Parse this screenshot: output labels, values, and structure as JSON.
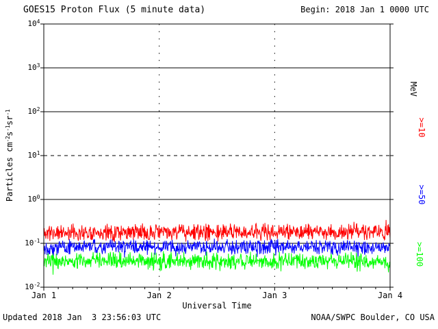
{
  "header": {
    "title": "GOES15 Proton Flux (5 minute data)",
    "begin": "Begin: 2018 Jan 1 0000 UTC"
  },
  "footer": {
    "updated": "Updated 2018 Jan  3 23:56:03 UTC",
    "source": "NOAA/SWPC Boulder, CO USA"
  },
  "chart_data": {
    "type": "line",
    "title": "GOES15 Proton Flux (5 minute data)",
    "begin_label": "Begin: 2018 Jan 1 0000 UTC",
    "xlabel": "Universal Time",
    "ylabel": "Particles cm-2 s-1 sr-1",
    "ylabel_segments": [
      {
        "t": "Particles cm"
      },
      {
        "t": "-2",
        "sup": true
      },
      {
        "t": "s"
      },
      {
        "t": "-1",
        "sup": true
      },
      {
        "t": "sr"
      },
      {
        "t": "-1",
        "sup": true
      }
    ],
    "units_label": "MeV",
    "y_scale": "log10",
    "ylim": [
      0.01,
      10000
    ],
    "y_exponents": [
      4,
      3,
      2,
      1,
      0,
      -1,
      -2
    ],
    "days": 3,
    "points_per_day": 288,
    "x_ticks": [
      {
        "label": "Jan 1",
        "day": 0
      },
      {
        "label": "Jan 2",
        "day": 1
      },
      {
        "label": "Jan 3",
        "day": 2
      },
      {
        "label": "Jan 4",
        "day": 3
      }
    ],
    "gridlines": {
      "solid_exponents": [
        3,
        2,
        0,
        -1
      ],
      "dashed_exponents": [
        1
      ],
      "vertical_dotted_days": [
        1,
        2
      ]
    },
    "series": [
      {
        "name": ">=10 MeV",
        "right_label": ">=10",
        "color": "#ff0000",
        "approx_mean_flux": 0.17,
        "approx_range": [
          0.1,
          0.35
        ],
        "base_log10": -0.75,
        "amp_log10": 0.145,
        "spike_prob": 0.06,
        "spike_log10": 0.14,
        "spike_sign": 1,
        "seed": 11
      },
      {
        "name": ">=50 MeV",
        "right_label": ">=50",
        "color": "#0000ff",
        "approx_mean_flux": 0.085,
        "approx_range": [
          0.04,
          0.13
        ],
        "base_log10": -1.08,
        "amp_log10": 0.13,
        "spike_prob": 0.06,
        "spike_log10": 0.2,
        "spike_sign": -1,
        "seed": 22
      },
      {
        "name": ">=100 MeV",
        "right_label": ">=100",
        "color": "#00ff00",
        "approx_mean_flux": 0.04,
        "approx_range": [
          0.02,
          0.08
        ],
        "base_log10": -1.4,
        "amp_log10": 0.15,
        "spike_prob": 0.06,
        "spike_log10": 0.15,
        "spike_sign": -1,
        "seed": 33
      }
    ]
  }
}
